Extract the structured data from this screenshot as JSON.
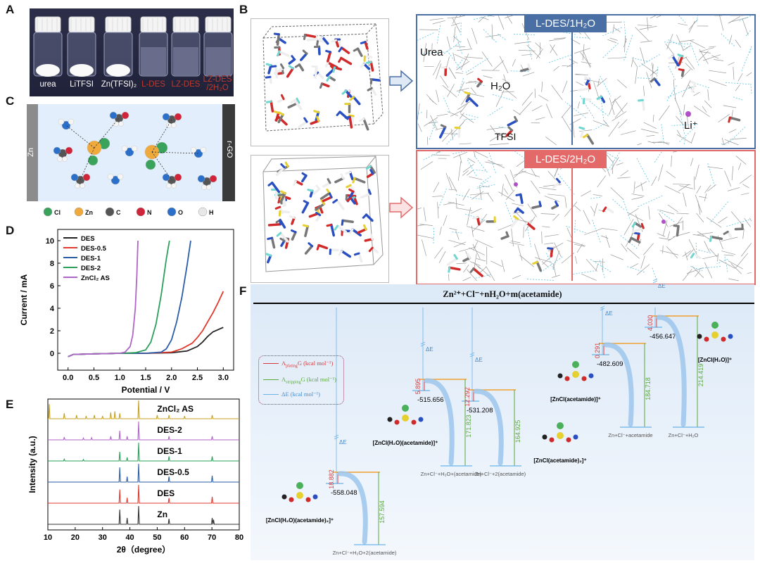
{
  "panels": {
    "A": "A",
    "B": "B",
    "C": "C",
    "D": "D",
    "E": "E",
    "F": "F"
  },
  "panel_a": {
    "vials": [
      "urea",
      "LiTFSI",
      "Zn(TFSI)₂",
      "L-DES",
      "LZ-DES",
      "LZ-DES"
    ],
    "vial6_line2": "/2H₂O",
    "label_colors": [
      "#ffffff",
      "#ffffff",
      "#ffffff",
      "#c0392b",
      "#c0392b",
      "#c0392b"
    ]
  },
  "panel_b": {
    "tag_top": "L-DES/1H₂O",
    "tag_bottom": "L-DES/2H₂O",
    "urea": "Urea",
    "water": "H₂O",
    "tfsi": "TFSI",
    "li": "Li⁺",
    "tag_top_color": "#4a6fa5",
    "tag_bottom_color": "#e46a6a"
  },
  "panel_c": {
    "left_electrode": "Zn",
    "right_electrode": "r-GO",
    "legend": [
      {
        "symbol": "Cl",
        "color": "#3aa35b"
      },
      {
        "symbol": "Zn",
        "color": "#f0a93b"
      },
      {
        "symbol": "C",
        "color": "#555555"
      },
      {
        "symbol": "N",
        "color": "#d0243a"
      },
      {
        "symbol": "O",
        "color": "#2a6fc9"
      },
      {
        "symbol": "H",
        "color": "#e8e8e8"
      }
    ]
  },
  "panel_f": {
    "header": "Zn²⁺+Cl⁻+nH₂O+m(acetamide)",
    "legend_plating": "A",
    "legend_plating_sub": "plating",
    "legend_plating_tail": "G (kcal mol⁻¹)",
    "legend_stripping": "A",
    "legend_stripping_sub": "stripping",
    "legend_stripping_tail": "G (kcal mol⁻¹)",
    "legend_de": "ΔE (kcal mol⁻¹)",
    "de_label": "ΔE",
    "species": [
      {
        "name": "[ZnCl(H₂O)(acetamide)₂]⁺",
        "energy": "-558.048",
        "plating": "18.882",
        "stripping": "157.594",
        "product": "Zn+Cl⁻+H₂O+2(acetamide)"
      },
      {
        "name": "[ZnCl(H₂O)(acetamide)]⁺",
        "energy": "-515.656",
        "plating": "5.895",
        "stripping": "171.823",
        "product": "Zn+Cl⁻+H₂O+(acetamide)"
      },
      {
        "name": "[ZnCl(acetamide)₂]⁺",
        "energy": "-531.208",
        "plating": "12.292",
        "stripping": "164.925",
        "product": "Zn+Cl⁻+2(acetamide)"
      },
      {
        "name": "[ZnCl(acetamide)]⁺",
        "energy": "-482.609",
        "plating": "0.291",
        "stripping": "184.718",
        "product": "Zn+Cl⁻+acetamide"
      },
      {
        "name": "[ZnCl(H₂O)]⁺",
        "energy": "-456.647",
        "plating": "4.030",
        "stripping": "214.419",
        "product": "Zn+Cl⁻+H₂O"
      }
    ]
  },
  "chart_data": [
    {
      "panel": "D",
      "type": "line",
      "xlabel": "Potential / V",
      "ylabel": "Current / mA",
      "xlim": [
        -0.2,
        3.2
      ],
      "ylim": [
        -1.5,
        11
      ],
      "xticks": [
        "0.0",
        "0.5",
        "1.0",
        "1.5",
        "2.0",
        "2.5",
        "3.0"
      ],
      "yticks": [
        "0",
        "2",
        "4",
        "6",
        "8",
        "10"
      ],
      "legend_position": "top-left",
      "series": [
        {
          "name": "DES",
          "color": "#222222",
          "x": [
            0.0,
            0.1,
            0.5,
            1.0,
            1.5,
            2.0,
            2.3,
            2.5,
            2.6,
            2.7,
            2.8,
            2.9,
            3.0
          ],
          "y": [
            -0.3,
            -0.1,
            -0.05,
            0.0,
            0.0,
            0.05,
            0.2,
            0.6,
            1.0,
            1.5,
            1.9,
            2.1,
            2.3
          ]
        },
        {
          "name": "DES-0.5",
          "color": "#e03a2f",
          "x": [
            0.0,
            0.1,
            0.5,
            1.0,
            1.5,
            2.0,
            2.2,
            2.4,
            2.5,
            2.6,
            2.7,
            2.8,
            2.9,
            3.0
          ],
          "y": [
            -0.3,
            -0.1,
            -0.05,
            0.0,
            0.0,
            0.1,
            0.4,
            0.9,
            1.4,
            2.0,
            2.8,
            3.6,
            4.5,
            5.5
          ]
        },
        {
          "name": "DES-1",
          "color": "#2a5ca8",
          "x": [
            0.0,
            0.1,
            0.5,
            1.0,
            1.5,
            1.8,
            1.9,
            2.0,
            2.1,
            2.2,
            2.3,
            2.37
          ],
          "y": [
            -0.3,
            -0.1,
            -0.05,
            0.0,
            0.0,
            0.1,
            0.4,
            1.2,
            2.8,
            5.0,
            7.8,
            10.0
          ]
        },
        {
          "name": "DES-2",
          "color": "#2aa05a",
          "x": [
            0.0,
            0.1,
            0.5,
            1.0,
            1.3,
            1.5,
            1.6,
            1.7,
            1.8,
            1.9,
            1.96
          ],
          "y": [
            -0.3,
            -0.1,
            -0.05,
            0.0,
            0.05,
            0.3,
            1.0,
            2.6,
            5.2,
            8.4,
            10.0
          ]
        },
        {
          "name": "ZnCl₂ AS",
          "color": "#b066c8",
          "x": [
            0.0,
            0.1,
            0.5,
            1.0,
            1.1,
            1.2,
            1.25,
            1.3,
            1.33,
            1.35
          ],
          "y": [
            -0.3,
            -0.1,
            -0.05,
            0.0,
            0.1,
            0.6,
            1.6,
            4.0,
            7.0,
            10.0
          ]
        }
      ]
    },
    {
      "panel": "E",
      "type": "line",
      "xlabel": "2θ（degree）",
      "ylabel": "Intensity (a.u.)",
      "xlim": [
        10,
        80
      ],
      "xticks": [
        "10",
        "20",
        "30",
        "40",
        "50",
        "60",
        "70",
        "80"
      ],
      "traces": [
        {
          "name": "Zn",
          "color": "#333333",
          "peaks": [
            [
              36.3,
              0.8
            ],
            [
              39.0,
              0.35
            ],
            [
              43.2,
              1.0
            ],
            [
              54.3,
              0.3
            ],
            [
              70.1,
              0.35
            ],
            [
              70.6,
              0.25
            ]
          ]
        },
        {
          "name": "DES",
          "color": "#e03a2f",
          "peaks": [
            [
              36.3,
              0.75
            ],
            [
              39.0,
              0.3
            ],
            [
              43.2,
              1.0
            ],
            [
              54.3,
              0.28
            ],
            [
              70.1,
              0.35
            ]
          ]
        },
        {
          "name": "DES-0.5",
          "color": "#2a5ca8",
          "peaks": [
            [
              36.3,
              0.8
            ],
            [
              39.0,
              0.3
            ],
            [
              43.2,
              1.0
            ],
            [
              54.3,
              0.3
            ],
            [
              70.1,
              0.35
            ]
          ]
        },
        {
          "name": "DES-1",
          "color": "#2aa05a",
          "peaks": [
            [
              16.0,
              0.1
            ],
            [
              23.0,
              0.08
            ],
            [
              36.3,
              0.5
            ],
            [
              39.0,
              0.2
            ],
            [
              43.2,
              1.0
            ],
            [
              54.3,
              0.25
            ],
            [
              70.1,
              0.25
            ]
          ]
        },
        {
          "name": "DES-2",
          "color": "#b066c8",
          "peaks": [
            [
              16.0,
              0.15
            ],
            [
              23.0,
              0.1
            ],
            [
              26.0,
              0.12
            ],
            [
              33.0,
              0.2
            ],
            [
              36.3,
              0.5
            ],
            [
              39.0,
              0.2
            ],
            [
              43.2,
              1.0
            ],
            [
              54.3,
              0.2
            ],
            [
              70.1,
              0.2
            ]
          ]
        },
        {
          "name": "ZnCl₂ AS",
          "color": "#c8a020",
          "peaks": [
            [
              10.5,
              0.8
            ],
            [
              16.0,
              0.3
            ],
            [
              20.5,
              0.2
            ],
            [
              24.0,
              0.15
            ],
            [
              27.0,
              0.2
            ],
            [
              30.0,
              0.15
            ],
            [
              33.0,
              0.35
            ],
            [
              34.5,
              0.4
            ],
            [
              36.3,
              0.3
            ],
            [
              43.2,
              1.0
            ],
            [
              50.0,
              0.2
            ],
            [
              54.3,
              0.2
            ],
            [
              60.0,
              0.15
            ],
            [
              70.1,
              0.2
            ]
          ]
        }
      ]
    }
  ]
}
